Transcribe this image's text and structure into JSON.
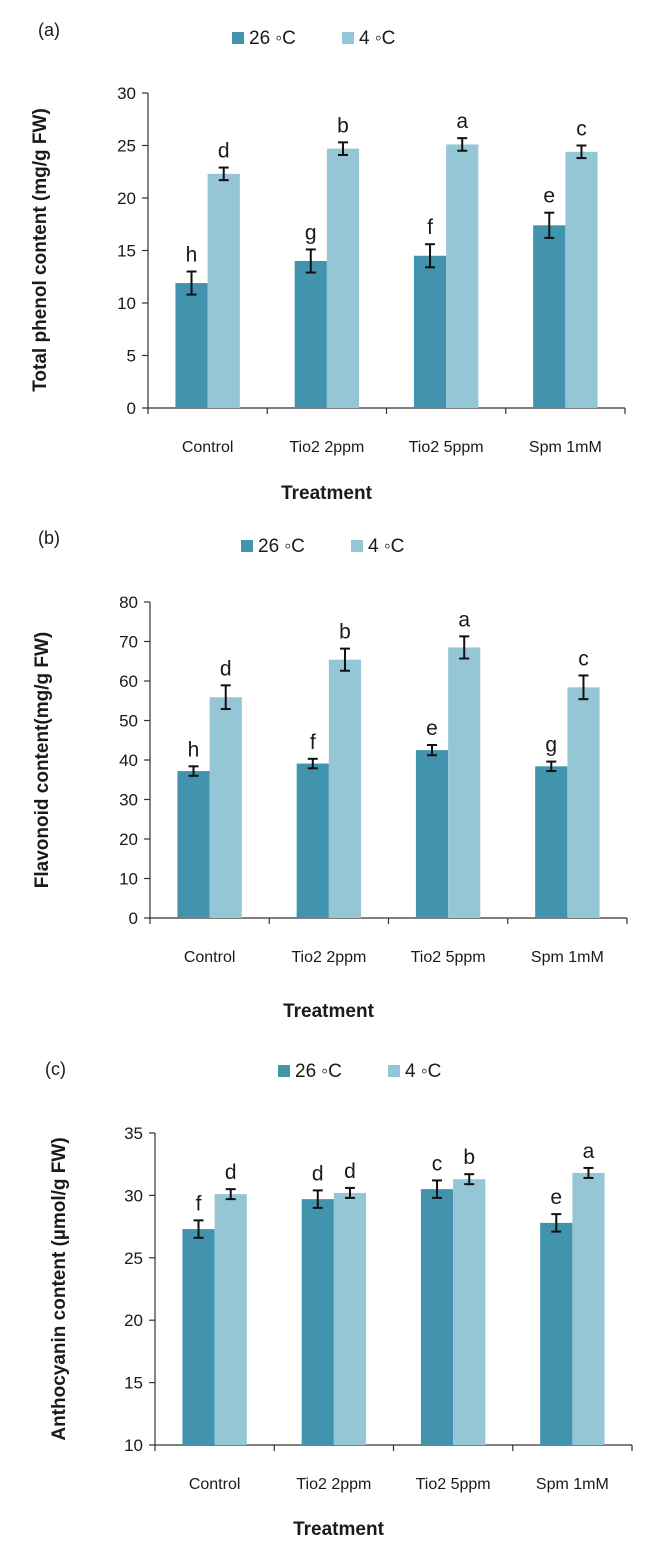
{
  "colors": {
    "s26": "#4293ad",
    "s4": "#95c6d6",
    "axis": "#333333",
    "errorbar": "#111111"
  },
  "chart_data": [
    {
      "panel": "(a)",
      "type": "bar",
      "categories": [
        "Control",
        "Tio2 2ppm",
        "Tio2 5ppm",
        "Spm 1mM"
      ],
      "series": [
        {
          "name": "26 ◦C",
          "values": [
            11.9,
            14.0,
            14.5,
            17.4
          ],
          "errors": [
            1.1,
            1.1,
            1.1,
            1.2
          ],
          "letters": [
            "h",
            "g",
            "f",
            "e"
          ]
        },
        {
          "name": "4 ◦C",
          "values": [
            22.3,
            24.7,
            25.1,
            24.4
          ],
          "errors": [
            0.6,
            0.6,
            0.6,
            0.6
          ],
          "letters": [
            "d",
            "b",
            "a",
            "c"
          ]
        }
      ],
      "ylim": [
        0,
        30
      ],
      "yticks": [
        0,
        5,
        10,
        15,
        20,
        25,
        30
      ],
      "xlabel": "Treatment",
      "ylabel": "Total phenol content (mg/g FW)",
      "legend_position": "top"
    },
    {
      "panel": "(b)",
      "type": "bar",
      "categories": [
        "Control",
        "Tio2 2ppm",
        "Tio2 5ppm",
        "Spm 1mM"
      ],
      "series": [
        {
          "name": "26 ◦C",
          "values": [
            37.2,
            39.1,
            42.5,
            38.4
          ],
          "errors": [
            1.2,
            1.2,
            1.3,
            1.2
          ],
          "letters": [
            "h",
            "f",
            "e",
            "g"
          ]
        },
        {
          "name": "4 ◦C",
          "values": [
            55.9,
            65.4,
            68.5,
            58.4
          ],
          "errors": [
            3.0,
            2.8,
            2.8,
            3.0
          ],
          "letters": [
            "d",
            "b",
            "a",
            "c"
          ]
        }
      ],
      "ylim": [
        0,
        80
      ],
      "yticks": [
        0,
        10,
        20,
        30,
        40,
        50,
        60,
        70,
        80
      ],
      "xlabel": "Treatment",
      "ylabel": "Flavonoid content(mg/g FW)",
      "legend_position": "top"
    },
    {
      "panel": "(c)",
      "type": "bar",
      "categories": [
        "Control",
        "Tio2 2ppm",
        "Tio2 5ppm",
        "Spm 1mM"
      ],
      "series": [
        {
          "name": "26 ◦C",
          "values": [
            27.3,
            29.7,
            30.5,
            27.8
          ],
          "errors": [
            0.7,
            0.7,
            0.7,
            0.7
          ],
          "letters": [
            "f",
            "d",
            "c",
            "e"
          ]
        },
        {
          "name": "4 ◦C",
          "values": [
            30.1,
            30.2,
            31.3,
            31.8
          ],
          "errors": [
            0.4,
            0.4,
            0.4,
            0.4
          ],
          "letters": [
            "d",
            "d",
            "b",
            "a"
          ]
        }
      ],
      "ylim": [
        10,
        35
      ],
      "yticks": [
        10,
        15,
        20,
        25,
        30,
        35
      ],
      "xlabel": "Treatment",
      "ylabel": "Anthocyanin content (µmol/g FW)",
      "legend_position": "top"
    }
  ]
}
